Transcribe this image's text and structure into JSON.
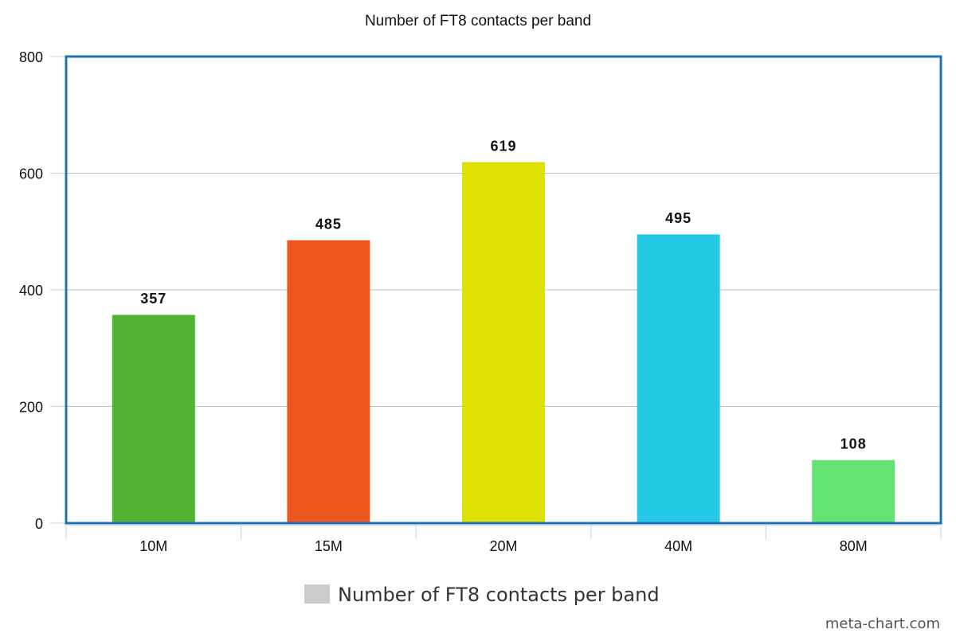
{
  "chart_data": {
    "type": "bar",
    "title": "Number of FT8 contacts per band",
    "categories": [
      "10M",
      "15M",
      "20M",
      "40M",
      "80M"
    ],
    "series": [
      {
        "name": "Number of FT8 contacts per band",
        "color": "#cccccc",
        "values": [
          357,
          485,
          619,
          495,
          108
        ],
        "point_colors": [
          "#52b334",
          "#ec571e",
          "#dde000",
          "#25c9e3",
          "#63e472"
        ]
      }
    ],
    "ylim": [
      0,
      800
    ],
    "yticks": [
      0,
      200,
      400,
      600,
      800
    ],
    "grid": true,
    "value_labels_shown": true,
    "legend": "bottom",
    "watermark": "meta-chart.com"
  }
}
